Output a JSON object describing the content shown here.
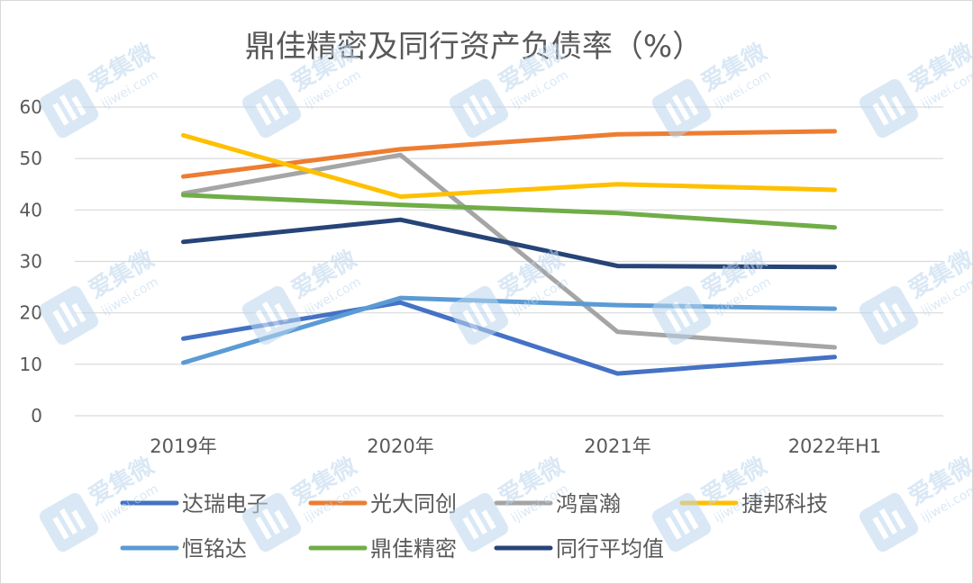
{
  "chart_data": {
    "type": "line",
    "title": "鼎佳精密及同行资产负债率（%）",
    "categories": [
      "2019年",
      "2020年",
      "2021年",
      "2022年H1"
    ],
    "ylim": [
      0,
      60
    ],
    "yticks": [
      0,
      10,
      20,
      30,
      40,
      50,
      60
    ],
    "grid": true,
    "legend_position": "bottom",
    "series": [
      {
        "name": "达瑞电子",
        "color": "#4472C4",
        "values": [
          15,
          22,
          8.2,
          11.4
        ]
      },
      {
        "name": "光大同创",
        "color": "#ED7D31",
        "values": [
          46.5,
          51.8,
          54.7,
          55.3
        ]
      },
      {
        "name": "鸿富瀚",
        "color": "#A5A5A5",
        "values": [
          43.2,
          50.7,
          16.3,
          13.3
        ]
      },
      {
        "name": "捷邦科技",
        "color": "#FFC000",
        "values": [
          54.5,
          42.6,
          45,
          43.9
        ]
      },
      {
        "name": "恒铭达",
        "color": "#5B9BD5",
        "values": [
          10.3,
          22.9,
          21.5,
          20.8
        ]
      },
      {
        "name": "鼎佳精密",
        "color": "#70AD47",
        "values": [
          42.9,
          41,
          39.4,
          36.6
        ]
      },
      {
        "name": "同行平均值",
        "color": "#264478",
        "values": [
          33.8,
          38.1,
          29.1,
          28.9
        ]
      }
    ]
  },
  "watermark": {
    "brand": "爱集微",
    "site": "ijiwei.com",
    "color": "#BDD7EE"
  }
}
